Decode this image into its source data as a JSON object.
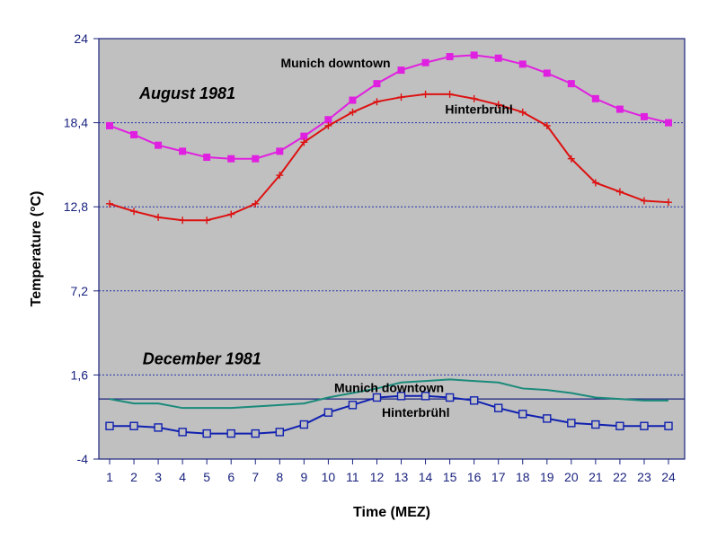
{
  "chart_data": {
    "type": "line",
    "xlabel": "Time (MEZ)",
    "ylabel": "Temperature (°C)",
    "ylim": [
      -4,
      24
    ],
    "y_ticks": [
      24,
      18.4,
      12.8,
      7.2,
      1.6,
      -4
    ],
    "y_tick_labels": [
      "24",
      "18,4",
      "12,8",
      "7,2",
      "1,6",
      "-4"
    ],
    "x": [
      1,
      2,
      3,
      4,
      5,
      6,
      7,
      8,
      9,
      10,
      11,
      12,
      13,
      14,
      15,
      16,
      17,
      18,
      19,
      20,
      21,
      22,
      23,
      24
    ],
    "x_tick_labels": [
      "1",
      "2",
      "3",
      "4",
      "5",
      "6",
      "7",
      "8",
      "9",
      "10",
      "11",
      "12",
      "13",
      "14",
      "15",
      "16",
      "17",
      "18",
      "19",
      "20",
      "21",
      "22",
      "23",
      "24"
    ],
    "grid": "horizontal dotted",
    "zero_line": true,
    "colors": {
      "plot_bg": "#c0c0c0",
      "aug_munich": "#e020e0",
      "aug_hinterbruehl": "#dd1111",
      "dec_munich": "#1a8a7a",
      "dec_hinterbruehl": "#1020b0",
      "grid": "#2233aa",
      "axis": "#1a237e"
    },
    "series": [
      {
        "name": "Munich downtown",
        "marker": "filled-square",
        "values": [
          18.2,
          17.6,
          16.9,
          16.5,
          16.1,
          16.0,
          16.0,
          16.5,
          17.5,
          18.6,
          19.9,
          21.0,
          21.9,
          22.4,
          22.8,
          22.9,
          22.7,
          22.3,
          21.7,
          21.0,
          20.0,
          19.3,
          18.8,
          18.4
        ]
      },
      {
        "name": "Hinterbrühl",
        "marker": "plus",
        "values": [
          13.0,
          12.5,
          12.1,
          11.9,
          11.9,
          12.3,
          13.0,
          14.9,
          17.1,
          18.2,
          19.1,
          19.8,
          20.1,
          20.3,
          20.3,
          20.0,
          19.6,
          19.1,
          18.2,
          16.0,
          14.4,
          13.8,
          13.2,
          13.1
        ]
      },
      {
        "name": "Munich downtown",
        "marker": "none",
        "values": [
          0.0,
          -0.3,
          -0.3,
          -0.6,
          -0.6,
          -0.6,
          -0.5,
          -0.4,
          -0.3,
          0.1,
          0.4,
          0.7,
          1.1,
          1.2,
          1.3,
          1.2,
          1.1,
          0.7,
          0.6,
          0.4,
          0.1,
          0.0,
          -0.1,
          -0.1
        ]
      },
      {
        "name": "Hinterbrühl",
        "marker": "open-square",
        "values": [
          -1.8,
          -1.8,
          -1.9,
          -2.2,
          -2.3,
          -2.3,
          -2.3,
          -2.2,
          -1.7,
          -0.9,
          -0.4,
          0.1,
          0.2,
          0.2,
          0.1,
          -0.1,
          -0.6,
          -1.0,
          -1.3,
          -1.6,
          -1.7,
          -1.8,
          -1.8,
          -1.8
        ]
      }
    ],
    "annotations": [
      {
        "text": "August 1981",
        "style": "big",
        "x": 4.2,
        "y": 20
      },
      {
        "text": "Munich downtown",
        "style": "label",
        "x": 10.3,
        "y": 22.1
      },
      {
        "text": "Hinterbrühl",
        "style": "label",
        "x": 16.2,
        "y": 19.0
      },
      {
        "text": "December 1981",
        "style": "big",
        "x": 4.8,
        "y": 2.3
      },
      {
        "text": "Munich downtown",
        "style": "label",
        "x": 12.5,
        "y": 0.45
      },
      {
        "text": "Hinterbrühl",
        "style": "label",
        "x": 13.6,
        "y": -1.2
      }
    ]
  }
}
